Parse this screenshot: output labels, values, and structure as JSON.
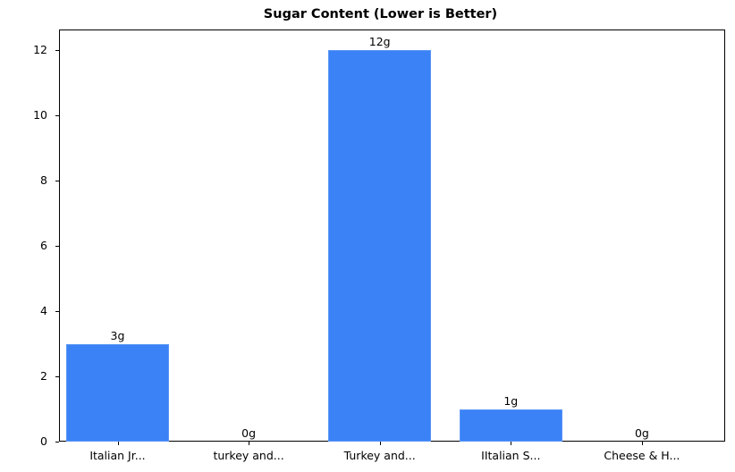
{
  "chart_data": {
    "type": "bar",
    "title": "Sugar Content (Lower is Better)",
    "xlabel": "",
    "ylabel": "",
    "categories": [
      "Italian Jr...",
      "turkey and...",
      "Turkey and...",
      "IItalian S...",
      "Cheese & H..."
    ],
    "values": [
      3,
      0,
      12,
      1,
      0
    ],
    "value_labels": [
      "3g",
      "0g",
      "12g",
      "1g",
      "0g"
    ],
    "ylim": [
      0,
      12.6
    ],
    "yticks": [
      0,
      2,
      4,
      6,
      8,
      10,
      12
    ],
    "grid": false,
    "legend": null,
    "bar_color": "#3b82f6"
  }
}
